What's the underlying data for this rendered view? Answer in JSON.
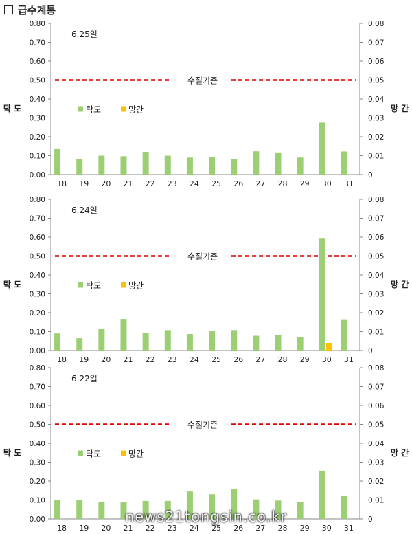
{
  "heading": {
    "title": "급수계통"
  },
  "watermark": "news21tongsin.co.kr",
  "colors": {
    "turbidity": "#9ccf73",
    "manganese": "#ffc000",
    "standard": "#e00000"
  },
  "chart_data": [
    {
      "type": "bar",
      "date_label": "6.25일",
      "categories": [
        "18",
        "19",
        "20",
        "21",
        "22",
        "23",
        "24",
        "25",
        "26",
        "27",
        "28",
        "29",
        "30",
        "31"
      ],
      "left_axis_label": "탁 도",
      "right_axis_label": "망 간",
      "ylim_left": [
        0,
        0.8
      ],
      "ylim_right": [
        0,
        0.08
      ],
      "left_ticks": [
        "0.00",
        "0.10",
        "0.20",
        "0.30",
        "0.40",
        "0.50",
        "0.60",
        "0.70",
        "0.80"
      ],
      "right_ticks": [
        "0",
        "0.01",
        "0.02",
        "0.03",
        "0.04",
        "0.05",
        "0.06",
        "0.07",
        "0.08"
      ],
      "standard_line": {
        "label": "수질기준",
        "value": 0.5
      },
      "series": [
        {
          "name": "탁도",
          "axis": "left",
          "values": [
            0.135,
            0.08,
            0.1,
            0.097,
            0.12,
            0.1,
            0.09,
            0.093,
            0.08,
            0.123,
            0.117,
            0.09,
            0.275,
            0.122
          ]
        },
        {
          "name": "망간",
          "axis": "right",
          "values": [
            0,
            0,
            0,
            0,
            0,
            0,
            0,
            0,
            0,
            0,
            0,
            0,
            0,
            0
          ]
        }
      ],
      "legend": "middle-left"
    },
    {
      "type": "bar",
      "date_label": "6.24일",
      "categories": [
        "18",
        "19",
        "20",
        "21",
        "22",
        "23",
        "24",
        "25",
        "26",
        "27",
        "28",
        "29",
        "30",
        "31"
      ],
      "left_axis_label": "탁 도",
      "right_axis_label": "망 간",
      "ylim_left": [
        0,
        0.8
      ],
      "ylim_right": [
        0,
        0.08
      ],
      "left_ticks": [
        "0.00",
        "0.10",
        "0.20",
        "0.30",
        "0.40",
        "0.50",
        "0.60",
        "0.70",
        "0.80"
      ],
      "right_ticks": [
        "0",
        "0.01",
        "0.02",
        "0.03",
        "0.04",
        "0.05",
        "0.06",
        "0.07",
        "0.08"
      ],
      "standard_line": {
        "label": "수질기준",
        "value": 0.5
      },
      "series": [
        {
          "name": "탁도",
          "axis": "left",
          "values": [
            0.09,
            0.065,
            0.115,
            0.167,
            0.093,
            0.108,
            0.087,
            0.105,
            0.108,
            0.078,
            0.082,
            0.072,
            0.592,
            0.165
          ]
        },
        {
          "name": "망간",
          "axis": "right",
          "values": [
            0,
            0,
            0,
            0,
            0,
            0,
            0,
            0,
            0,
            0,
            0,
            0,
            0.004,
            0
          ]
        }
      ],
      "legend": "middle-left"
    },
    {
      "type": "bar",
      "date_label": "6.22일",
      "categories": [
        "18",
        "19",
        "20",
        "21",
        "22",
        "23",
        "24",
        "25",
        "26",
        "27",
        "28",
        "29",
        "30",
        "31"
      ],
      "left_axis_label": "탁 도",
      "right_axis_label": "망 간",
      "ylim_left": [
        0,
        0.8
      ],
      "ylim_right": [
        0,
        0.08
      ],
      "left_ticks": [
        "0.00",
        "0.10",
        "0.20",
        "0.30",
        "0.40",
        "0.50",
        "0.60",
        "0.70",
        "0.80"
      ],
      "right_ticks": [
        "0",
        "0.01",
        "0.02",
        "0.03",
        "0.04",
        "0.05",
        "0.06",
        "0.07",
        "0.08"
      ],
      "standard_line": {
        "label": "수질기준",
        "value": 0.5
      },
      "series": [
        {
          "name": "탁도",
          "axis": "left",
          "values": [
            0.1,
            0.098,
            0.09,
            0.088,
            0.095,
            0.095,
            0.145,
            0.13,
            0.16,
            0.103,
            0.097,
            0.088,
            0.255,
            0.12
          ]
        },
        {
          "name": "망간",
          "axis": "right",
          "values": [
            0,
            0,
            0,
            0,
            0,
            0,
            0,
            0,
            0,
            0,
            0,
            0,
            0,
            0
          ]
        }
      ],
      "legend": "middle-left"
    }
  ]
}
